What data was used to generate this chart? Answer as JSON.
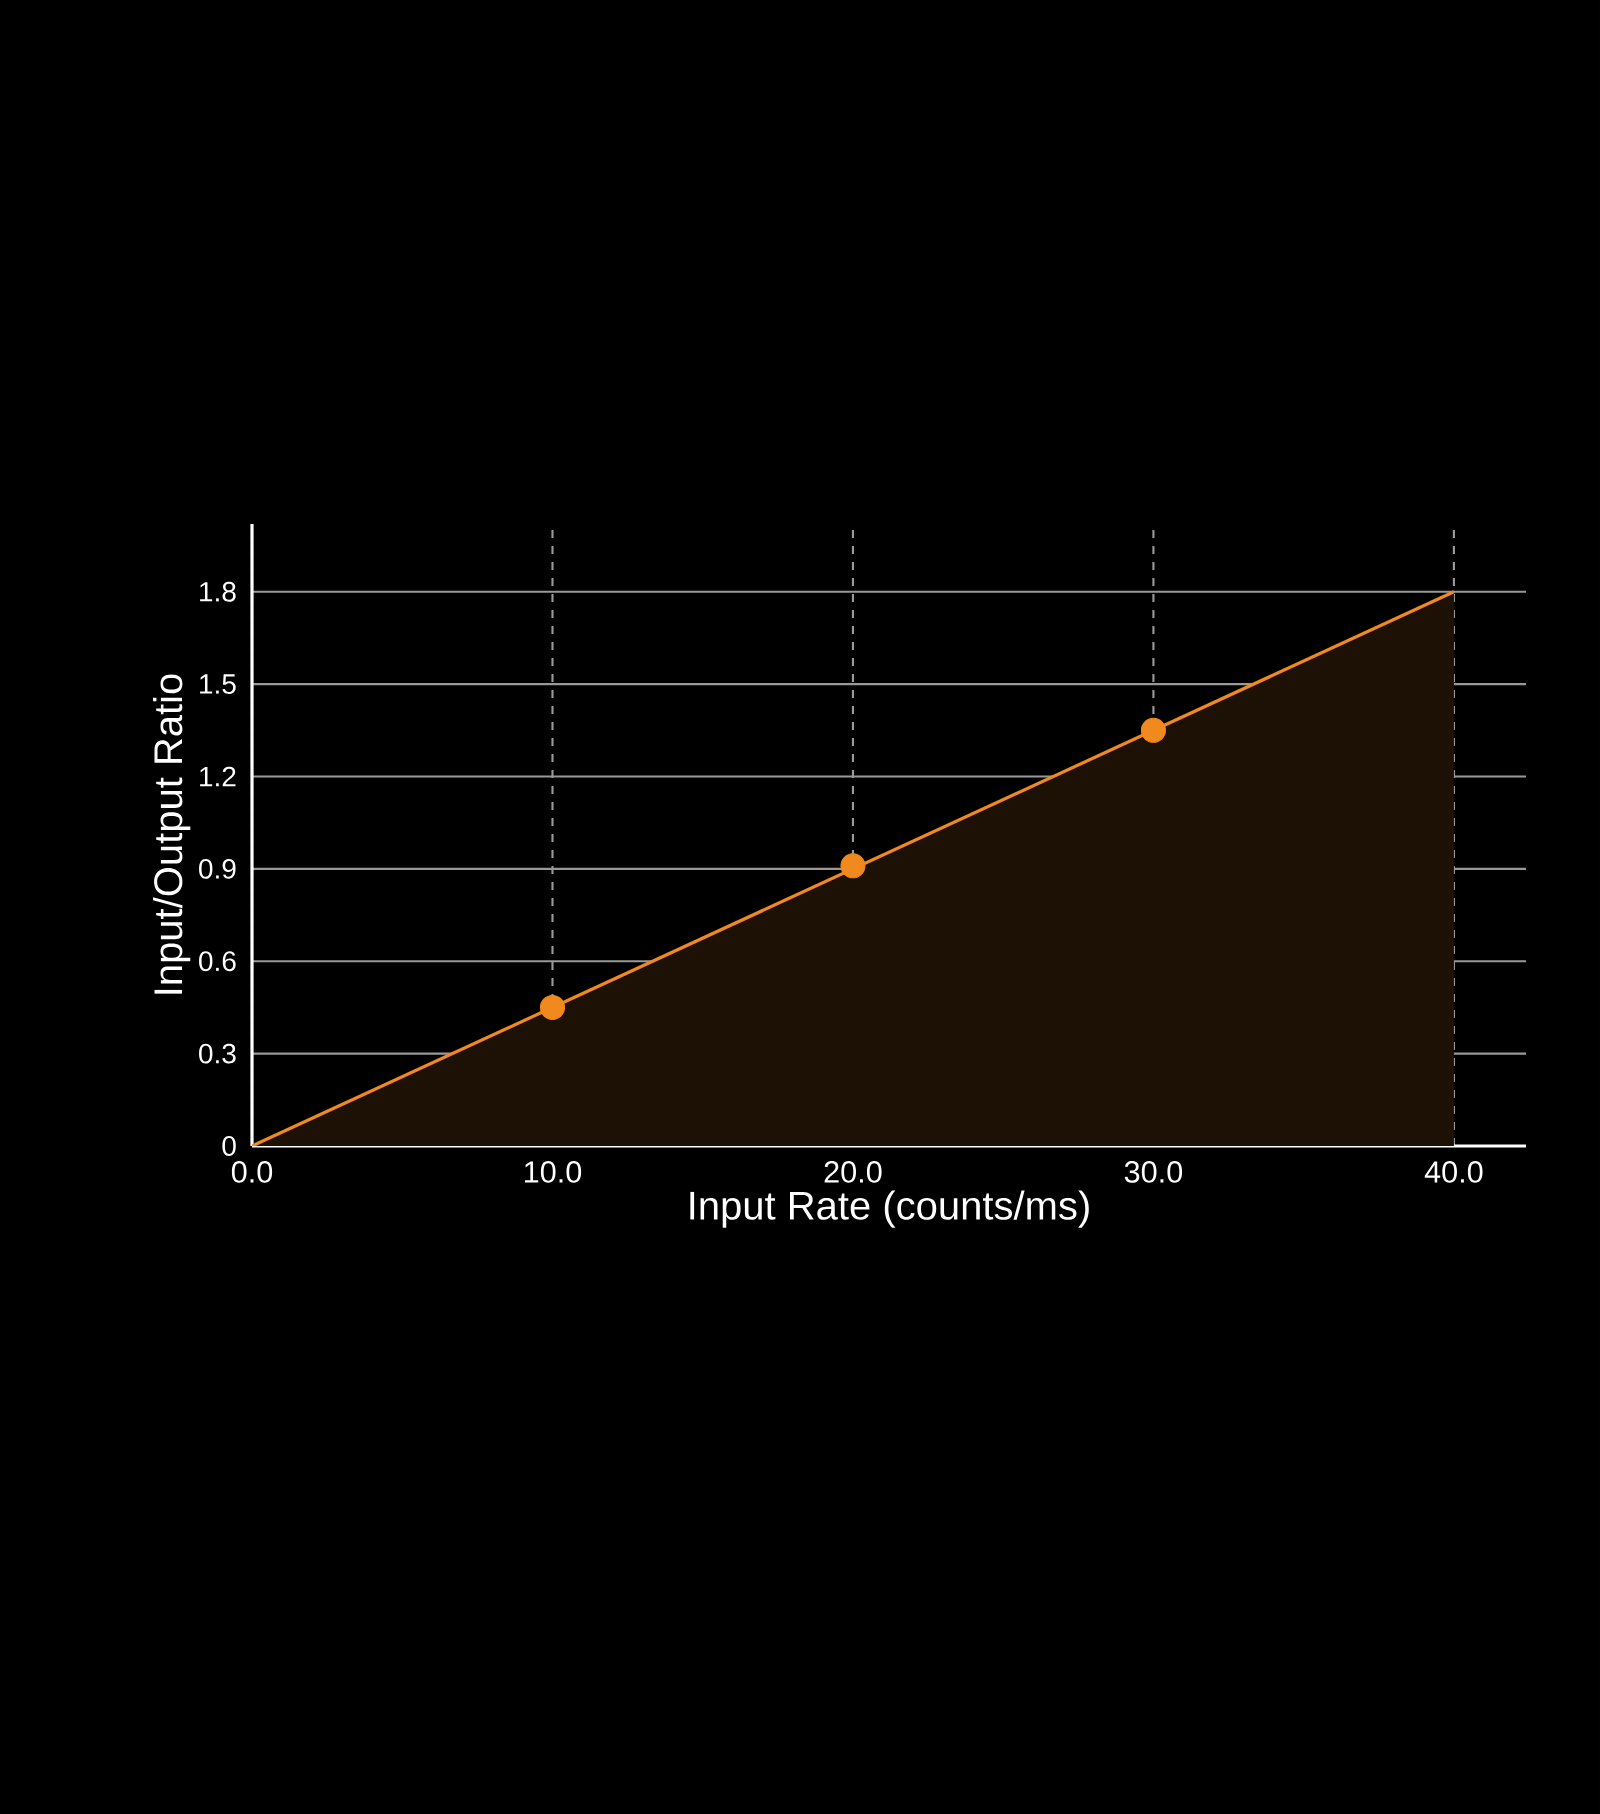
{
  "chart_data": {
    "type": "area",
    "xlabel": "Input Rate (counts/ms)",
    "ylabel": "Input/Output Ratio",
    "xlim": [
      0,
      42.4
    ],
    "ylim": [
      0,
      2.02
    ],
    "xticks": [
      {
        "value": 0,
        "label": "0.0"
      },
      {
        "value": 10,
        "label": "10.0"
      },
      {
        "value": 20,
        "label": "20.0"
      },
      {
        "value": 30,
        "label": "30.0"
      },
      {
        "value": 40,
        "label": "40.0"
      }
    ],
    "yticks": [
      0,
      0.3,
      0.6,
      0.9,
      1.2,
      1.5,
      1.8
    ],
    "grid": true,
    "series": [
      {
        "color": "#f0891e",
        "x": [
          0,
          40
        ],
        "values": [
          0,
          1.8
        ]
      },
      {
        "type": "scatter",
        "color": "#f0891e",
        "marker": "circle",
        "x": [
          10,
          20,
          30
        ],
        "values": [
          0.45,
          0.91,
          1.35
        ]
      }
    ]
  }
}
